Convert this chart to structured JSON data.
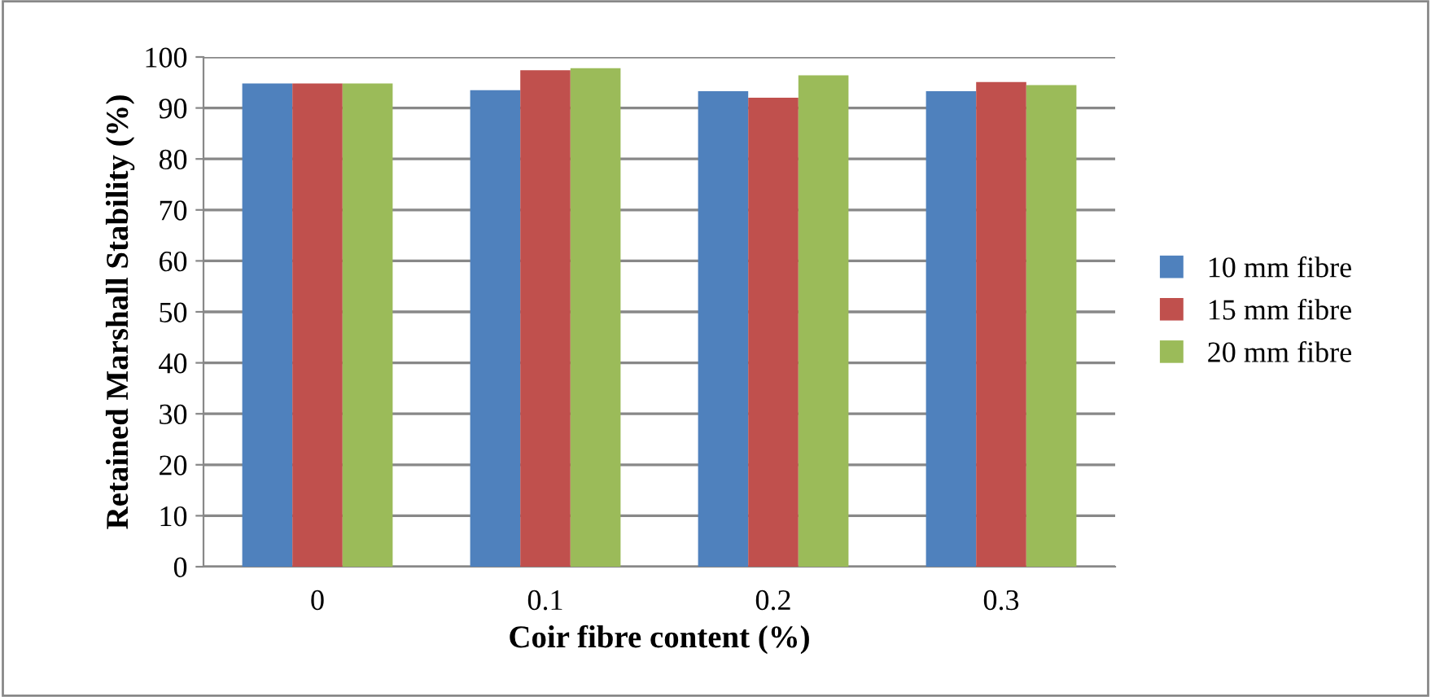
{
  "chart_data": {
    "type": "bar",
    "xlabel": "Coir fibre content (%)",
    "ylabel": "Retained Marshall Stability (%)",
    "categories": [
      "0",
      "0.1",
      "0.2",
      "0.3"
    ],
    "series": [
      {
        "name": "10 mm fibre",
        "color": "#4f81bd",
        "values": [
          94.8,
          93.5,
          93.3,
          93.3
        ]
      },
      {
        "name": "15 mm fibre",
        "color": "#c0504d",
        "values": [
          94.8,
          97.4,
          92.0,
          95.1
        ]
      },
      {
        "name": "20 mm fibre",
        "color": "#9bbb59",
        "values": [
          94.8,
          97.8,
          96.4,
          94.5
        ]
      }
    ],
    "ylim": [
      0,
      100
    ],
    "yticks": [
      0,
      10,
      20,
      30,
      40,
      50,
      60,
      70,
      80,
      90,
      100
    ],
    "grid": "y",
    "legend": "right"
  }
}
